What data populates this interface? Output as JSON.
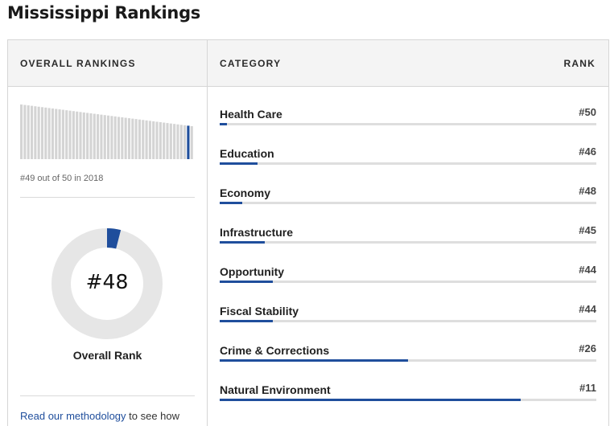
{
  "page": {
    "title": "Mississippi Rankings"
  },
  "header": {
    "overall": "OVERALL RANKINGS",
    "category": "CATEGORY",
    "rank": "RANK"
  },
  "overall": {
    "history_caption": "#49 out of 50 in 2018",
    "history_bars": 50,
    "highlight_position": 49,
    "rank_value": "#48",
    "rank_label": "Overall Rank",
    "rank_fraction": 0.04,
    "methodology_link": "Read our methodology",
    "methodology_rest": " to see how"
  },
  "categories": [
    {
      "name": "Health Care",
      "rank": "#50",
      "score": 0.02
    },
    {
      "name": "Education",
      "rank": "#46",
      "score": 0.1
    },
    {
      "name": "Economy",
      "rank": "#48",
      "score": 0.06
    },
    {
      "name": "Infrastructure",
      "rank": "#45",
      "score": 0.12
    },
    {
      "name": "Opportunity",
      "rank": "#44",
      "score": 0.14
    },
    {
      "name": "Fiscal Stability",
      "rank": "#44",
      "score": 0.14
    },
    {
      "name": "Crime & Corrections",
      "rank": "#26",
      "score": 0.5
    },
    {
      "name": "Natural Environment",
      "rank": "#11",
      "score": 0.8
    }
  ],
  "colors": {
    "accent": "#1f4e9c",
    "track": "#e6e6e6",
    "bar_grey": "#d4d4d4"
  }
}
